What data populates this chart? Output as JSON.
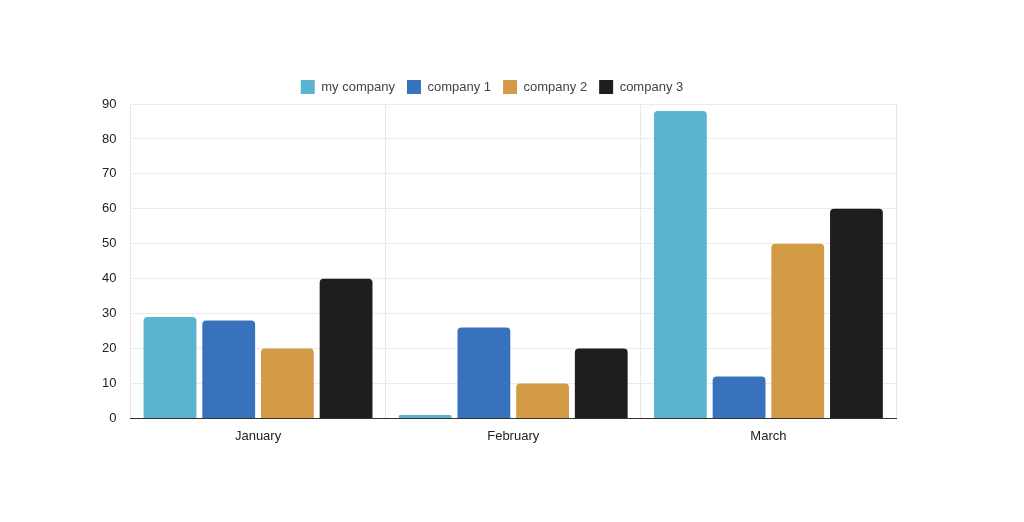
{
  "chart_data": {
    "type": "bar",
    "categories": [
      "January",
      "February",
      "March"
    ],
    "series": [
      {
        "name": "my company",
        "color": "#5ab4cf",
        "values": [
          29,
          1,
          88
        ]
      },
      {
        "name": "company 1",
        "color": "#3872bd",
        "values": [
          28,
          26,
          12
        ]
      },
      {
        "name": "company 2",
        "color": "#d49b47",
        "values": [
          20,
          10,
          50
        ]
      },
      {
        "name": "company 3",
        "color": "#1e1e1e",
        "values": [
          40,
          20,
          60
        ]
      }
    ],
    "ylim": [
      0,
      90
    ],
    "yticks": [
      0,
      10,
      20,
      30,
      40,
      50,
      60,
      70,
      80,
      90
    ],
    "grid": true,
    "legend": "top"
  }
}
